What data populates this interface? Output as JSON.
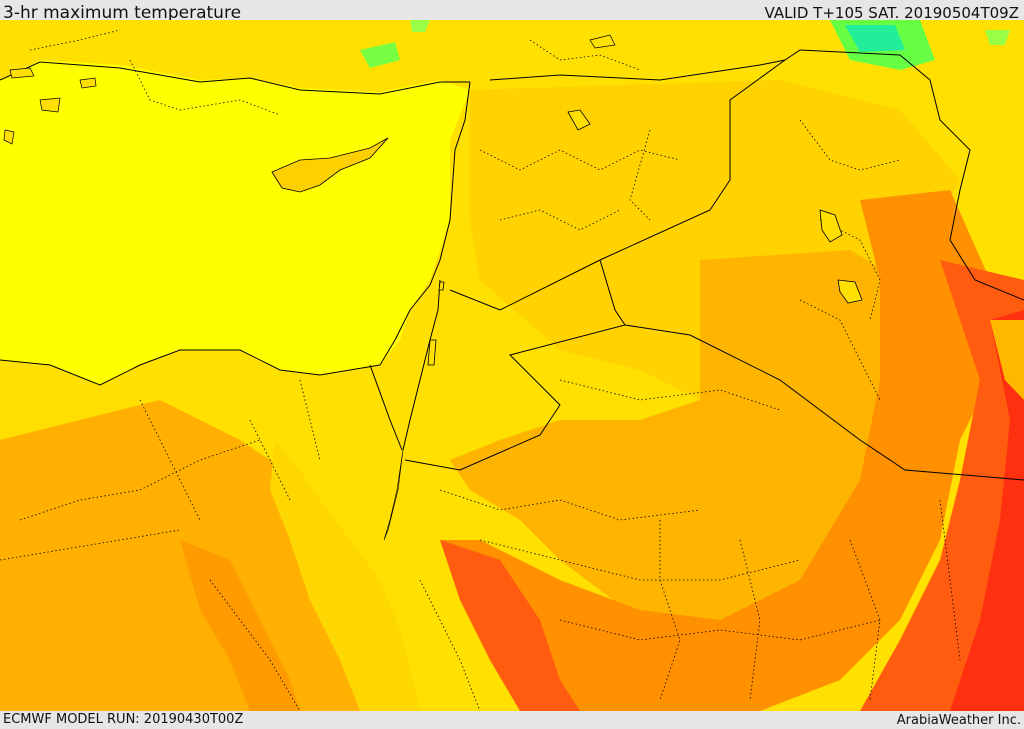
{
  "header": {
    "title": "3-hr maximum temperature",
    "valid": "VALID T+105 SAT. 20190504T09Z"
  },
  "footer": {
    "model_run": "ECMWF MODEL RUN: 20190430T00Z",
    "credit": "ArabiaWeather Inc."
  },
  "map": {
    "colors": {
      "sea": "#ffff00",
      "light": "#ffe600",
      "mid_yellow": "#ffd700",
      "gold": "#ffc400",
      "orange": "#ffa800",
      "dark_orange": "#ff8a00",
      "red_orange": "#ff5a10",
      "red": "#ff2e10",
      "green": "#88ff33",
      "teal": "#22ee99",
      "borders": "#000000"
    }
  }
}
